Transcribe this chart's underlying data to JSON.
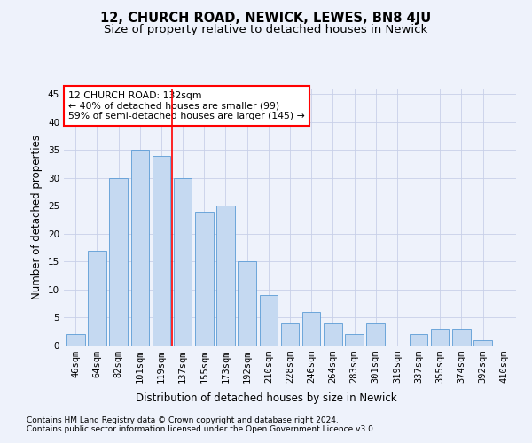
{
  "title": "12, CHURCH ROAD, NEWICK, LEWES, BN8 4JU",
  "subtitle": "Size of property relative to detached houses in Newick",
  "xlabel": "Distribution of detached houses by size in Newick",
  "ylabel": "Number of detached properties",
  "footnote1": "Contains HM Land Registry data © Crown copyright and database right 2024.",
  "footnote2": "Contains public sector information licensed under the Open Government Licence v3.0.",
  "categories": [
    "46sqm",
    "64sqm",
    "82sqm",
    "101sqm",
    "119sqm",
    "137sqm",
    "155sqm",
    "173sqm",
    "192sqm",
    "210sqm",
    "228sqm",
    "246sqm",
    "264sqm",
    "283sqm",
    "301sqm",
    "319sqm",
    "337sqm",
    "355sqm",
    "374sqm",
    "392sqm",
    "410sqm"
  ],
  "values": [
    2,
    17,
    30,
    35,
    34,
    30,
    24,
    25,
    15,
    9,
    4,
    6,
    4,
    2,
    4,
    0,
    2,
    3,
    3,
    1,
    0
  ],
  "bar_color": "#c5d9f1",
  "bar_edge_color": "#5b9bd5",
  "vline_color": "red",
  "annotation_text": "12 CHURCH ROAD: 132sqm\n← 40% of detached houses are smaller (99)\n59% of semi-detached houses are larger (145) →",
  "annotation_box_color": "white",
  "annotation_box_edge": "red",
  "ylim": [
    0,
    46
  ],
  "yticks": [
    0,
    5,
    10,
    15,
    20,
    25,
    30,
    35,
    40,
    45
  ],
  "bg_color": "#eef2fb",
  "grid_color": "#c8d0e8",
  "title_fontsize": 10.5,
  "subtitle_fontsize": 9.5,
  "axis_label_fontsize": 8.5,
  "tick_fontsize": 7.5,
  "footnote_fontsize": 6.5,
  "annotation_fontsize": 7.8
}
